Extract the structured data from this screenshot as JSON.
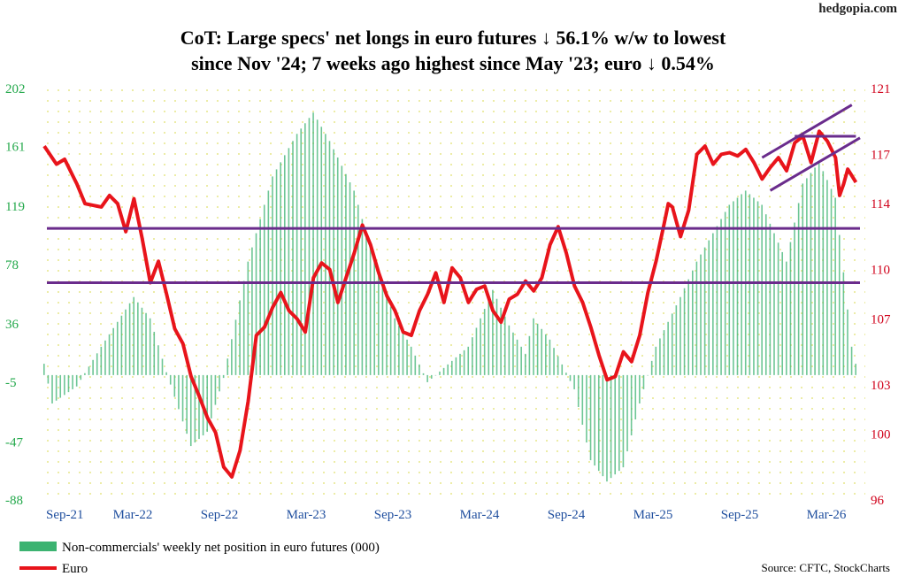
{
  "header": {
    "brand": "hedgopia.com",
    "title_line1": "CoT: Large specs' net longs in euro futures ↓ 56.1% w/w to lowest",
    "title_line2": "since Nov '24; 7 weeks ago highest since May '23; euro ↓ 0.54%"
  },
  "footer": {
    "source": "Source: CFTC, StockCharts"
  },
  "chart_data": {
    "type": "bar",
    "x_ticks": [
      "Sep-21",
      "Mar-22",
      "Sep-22",
      "Mar-23",
      "Sep-23",
      "Mar-24",
      "Sep-24",
      "Mar-25",
      "Sep-25",
      "Mar-26"
    ],
    "left_axis": {
      "ticks": [
        202,
        161,
        119,
        78,
        36,
        -5,
        -47,
        -88
      ],
      "range": [
        -88,
        202
      ]
    },
    "right_axis": {
      "ticks": [
        121,
        117,
        114,
        110,
        107,
        103,
        100,
        96
      ],
      "range": [
        96,
        121
      ]
    },
    "grid": "dotted",
    "legend_placement": "bottom-left",
    "series": [
      {
        "name": "Non-commercials' weekly net position in euro futures (000)",
        "axis": "left",
        "type": "bar",
        "color": "#3cb371",
        "anchors_week_value": [
          [
            0,
            8
          ],
          [
            2,
            -20
          ],
          [
            8,
            -8
          ],
          [
            14,
            20
          ],
          [
            22,
            55
          ],
          [
            26,
            40
          ],
          [
            30,
            2
          ],
          [
            36,
            -50
          ],
          [
            40,
            -40
          ],
          [
            44,
            -2
          ],
          [
            50,
            80
          ],
          [
            56,
            140
          ],
          [
            62,
            170
          ],
          [
            66,
            185
          ],
          [
            70,
            165
          ],
          [
            76,
            130
          ],
          [
            80,
            90
          ],
          [
            86,
            40
          ],
          [
            90,
            20
          ],
          [
            94,
            -5
          ],
          [
            100,
            10
          ],
          [
            104,
            20
          ],
          [
            110,
            60
          ],
          [
            114,
            35
          ],
          [
            118,
            15
          ],
          [
            120,
            40
          ],
          [
            124,
            25
          ],
          [
            130,
            -10
          ],
          [
            134,
            -60
          ],
          [
            138,
            -75
          ],
          [
            142,
            -65
          ],
          [
            146,
            -20
          ],
          [
            150,
            20
          ],
          [
            156,
            55
          ],
          [
            160,
            80
          ],
          [
            164,
            100
          ],
          [
            168,
            120
          ],
          [
            172,
            130
          ],
          [
            176,
            120
          ],
          [
            182,
            80
          ],
          [
            186,
            135
          ],
          [
            190,
            150
          ],
          [
            194,
            125
          ],
          [
            198,
            20
          ],
          [
            199,
            8
          ]
        ]
      },
      {
        "name": "Euro",
        "axis": "right",
        "type": "line",
        "color": "#e8141b",
        "anchors_week_value": [
          [
            0,
            117.5
          ],
          [
            3,
            116.4
          ],
          [
            5,
            116.7
          ],
          [
            8,
            115.2
          ],
          [
            10,
            114.0
          ],
          [
            14,
            113.8
          ],
          [
            16,
            114.5
          ],
          [
            18,
            114.0
          ],
          [
            20,
            112.3
          ],
          [
            22,
            114.3
          ],
          [
            24,
            111.9
          ],
          [
            26,
            109.2
          ],
          [
            28,
            110.5
          ],
          [
            30,
            108.5
          ],
          [
            32,
            106.4
          ],
          [
            34,
            105.5
          ],
          [
            36,
            103.5
          ],
          [
            38,
            102.3
          ],
          [
            40,
            101.0
          ],
          [
            42,
            100.1
          ],
          [
            44,
            98.0
          ],
          [
            46,
            97.4
          ],
          [
            48,
            99.0
          ],
          [
            50,
            102.0
          ],
          [
            52,
            106.0
          ],
          [
            54,
            106.5
          ],
          [
            56,
            107.7
          ],
          [
            58,
            108.6
          ],
          [
            60,
            107.5
          ],
          [
            62,
            107.0
          ],
          [
            64,
            106.2
          ],
          [
            66,
            109.5
          ],
          [
            68,
            110.4
          ],
          [
            70,
            110.0
          ],
          [
            72,
            108.0
          ],
          [
            74,
            109.5
          ],
          [
            76,
            111.0
          ],
          [
            78,
            112.7
          ],
          [
            80,
            111.5
          ],
          [
            82,
            109.8
          ],
          [
            84,
            108.4
          ],
          [
            86,
            107.5
          ],
          [
            88,
            106.2
          ],
          [
            90,
            106.0
          ],
          [
            92,
            107.5
          ],
          [
            94,
            108.5
          ],
          [
            96,
            109.8
          ],
          [
            98,
            108.0
          ],
          [
            100,
            110.1
          ],
          [
            102,
            109.5
          ],
          [
            104,
            108.0
          ],
          [
            106,
            108.8
          ],
          [
            108,
            109.0
          ],
          [
            110,
            107.5
          ],
          [
            112,
            106.8
          ],
          [
            114,
            108.2
          ],
          [
            116,
            108.5
          ],
          [
            118,
            109.3
          ],
          [
            120,
            108.7
          ],
          [
            122,
            109.5
          ],
          [
            124,
            111.5
          ],
          [
            126,
            112.6
          ],
          [
            128,
            111.0
          ],
          [
            130,
            109.0
          ],
          [
            132,
            108.0
          ],
          [
            134,
            106.5
          ],
          [
            136,
            104.8
          ],
          [
            138,
            103.3
          ],
          [
            140,
            103.5
          ],
          [
            142,
            105.0
          ],
          [
            144,
            104.4
          ],
          [
            146,
            106.0
          ],
          [
            148,
            108.6
          ],
          [
            150,
            110.5
          ],
          [
            152,
            112.8
          ],
          [
            153,
            114.0
          ],
          [
            154,
            113.8
          ],
          [
            156,
            112.0
          ],
          [
            158,
            113.6
          ],
          [
            160,
            117.0
          ],
          [
            162,
            117.5
          ],
          [
            164,
            116.4
          ],
          [
            166,
            117.0
          ],
          [
            168,
            117.1
          ],
          [
            170,
            116.9
          ],
          [
            172,
            117.3
          ],
          [
            174,
            116.5
          ],
          [
            176,
            115.5
          ],
          [
            178,
            116.2
          ],
          [
            180,
            116.8
          ],
          [
            182,
            116.0
          ],
          [
            184,
            117.7
          ],
          [
            186,
            118.1
          ],
          [
            188,
            116.5
          ],
          [
            190,
            118.4
          ],
          [
            192,
            117.8
          ],
          [
            194,
            116.8
          ],
          [
            195,
            114.5
          ],
          [
            196,
            115.2
          ],
          [
            197,
            116.1
          ],
          [
            199,
            115.3
          ]
        ]
      }
    ],
    "annotations": {
      "horizontal_lines_right_axis": [
        112.5,
        109.2
      ],
      "channel_top_line": {
        "week": [
          184,
          199
        ],
        "value": [
          118.1,
          118.1
        ]
      },
      "channel_upper": {
        "week": [
          176,
          198
        ],
        "value": [
          116.8,
          120.0
        ]
      },
      "channel_lower": {
        "week": [
          178,
          200
        ],
        "value": [
          114.8,
          118.0
        ]
      }
    }
  },
  "legend": {
    "items": [
      {
        "label": "Non-commercials' weekly net position in euro futures (000)",
        "color": "#3cb371",
        "swatch": "bar"
      },
      {
        "label": "Euro",
        "color": "#e8141b",
        "swatch": "line"
      }
    ]
  }
}
